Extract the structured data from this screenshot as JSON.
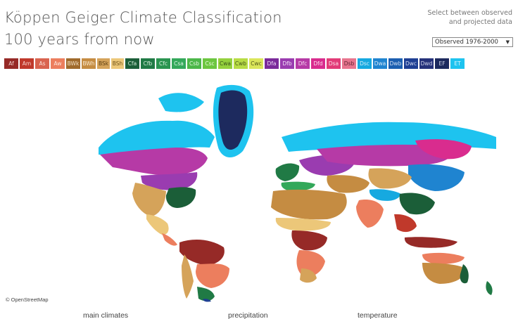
{
  "header": {
    "title_line1": "Köppen Geiger Climate Classification",
    "title_line2": "100 years from now"
  },
  "selector": {
    "hint_line1": "Select between observed",
    "hint_line2": "and projected data",
    "selected": "Observed 1976-2000"
  },
  "legend": [
    {
      "code": "Af",
      "color": "#962a27",
      "text": "#f2d4d0"
    },
    {
      "code": "Am",
      "color": "#c0392b",
      "text": "#f7d5d0"
    },
    {
      "code": "As",
      "color": "#d9634f",
      "text": "#fbe3dc"
    },
    {
      "code": "Aw",
      "color": "#ec7e5e",
      "text": "#fde9e0"
    },
    {
      "code": "BWk",
      "color": "#a06a2c",
      "text": "#f5e4c8"
    },
    {
      "code": "BWh",
      "color": "#c58c42",
      "text": "#fbecd2"
    },
    {
      "code": "BSk",
      "color": "#d5a35a",
      "text": "#5a3c10"
    },
    {
      "code": "BSh",
      "color": "#ecc779",
      "text": "#6e5119"
    },
    {
      "code": "Cfa",
      "color": "#1b5e38",
      "text": "#d2ecd9"
    },
    {
      "code": "Cfb",
      "color": "#207a45",
      "text": "#d7efdd"
    },
    {
      "code": "Cfc",
      "color": "#2a9450",
      "text": "#dbf3e1"
    },
    {
      "code": "Csa",
      "color": "#33a85a",
      "text": "#e0f6e6"
    },
    {
      "code": "Csb",
      "color": "#4cb749",
      "text": "#e6f8e2"
    },
    {
      "code": "Csc",
      "color": "#6cc640",
      "text": "#eefbe4"
    },
    {
      "code": "Cwa",
      "color": "#94d13d",
      "text": "#38521a"
    },
    {
      "code": "Cwb",
      "color": "#b8dc44",
      "text": "#45561a"
    },
    {
      "code": "Cwc",
      "color": "#dbe65a",
      "text": "#4f5618"
    },
    {
      "code": "Dfa",
      "color": "#7a2a9a",
      "text": "#efd9f7"
    },
    {
      "code": "Dfb",
      "color": "#9a3cb0",
      "text": "#f3e0f8"
    },
    {
      "code": "Dfc",
      "color": "#b63aa6",
      "text": "#f7ddf2"
    },
    {
      "code": "Dfd",
      "color": "#d92c8e",
      "text": "#fbdcec"
    },
    {
      "code": "Dsa",
      "color": "#e23b78",
      "text": "#fce0ea"
    },
    {
      "code": "Dsb",
      "color": "#e8758e",
      "text": "#5e2230"
    },
    {
      "code": "Dsc",
      "color": "#16a9e0",
      "text": "#d6f0fb"
    },
    {
      "code": "Dwa",
      "color": "#1f84d0",
      "text": "#d6e9f8"
    },
    {
      "code": "Dwb",
      "color": "#1c5fb0",
      "text": "#d3e1f4"
    },
    {
      "code": "Dwc",
      "color": "#1e3f93",
      "text": "#d2daf0"
    },
    {
      "code": "Dwd",
      "color": "#26327a",
      "text": "#d3d6ec"
    },
    {
      "code": "EF",
      "color": "#1d2a5e",
      "text": "#d0d4e8"
    },
    {
      "code": "ET",
      "color": "#1ec3ef",
      "text": "#e0f6fd"
    }
  ],
  "map": {
    "attribution": "© OpenStreetMap"
  },
  "footer": {
    "tab1": "main climates",
    "tab2": "precipitation",
    "tab3": "temperature"
  }
}
